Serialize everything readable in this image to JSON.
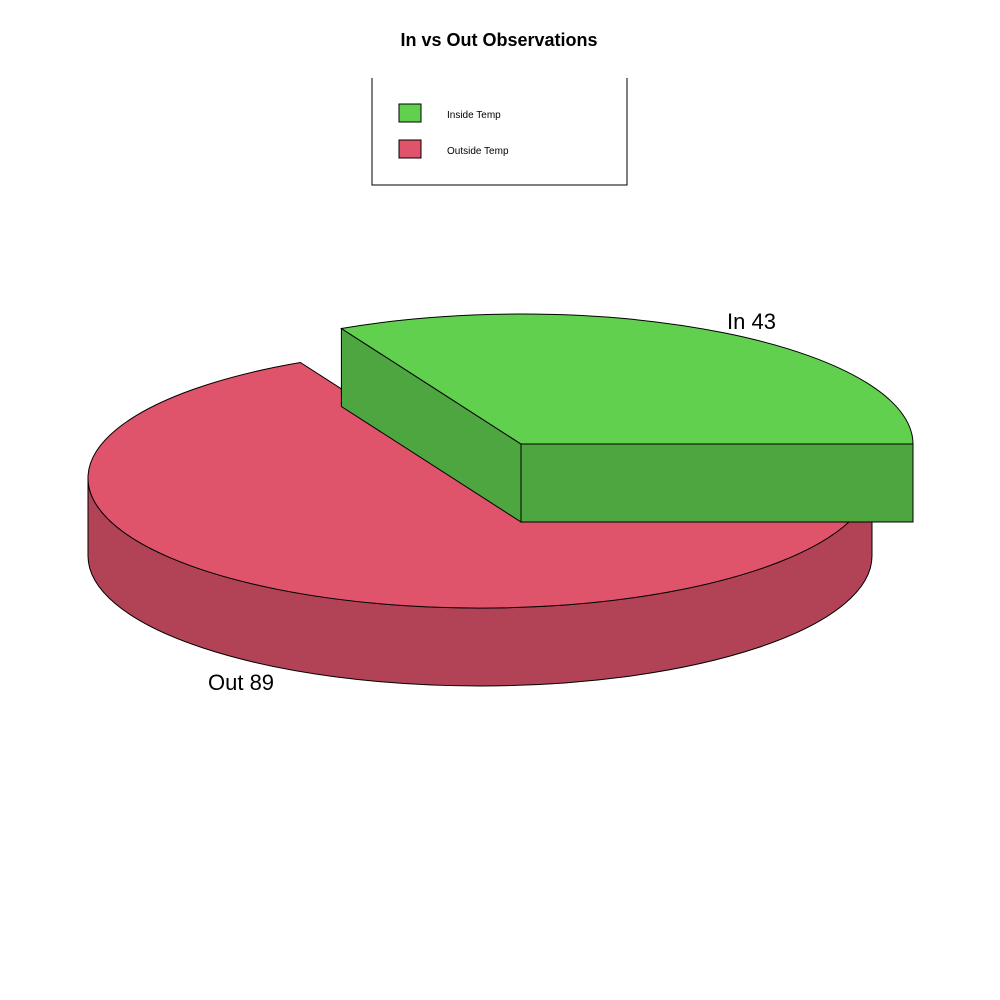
{
  "chart_data": {
    "type": "pie",
    "title": "In vs Out Observations",
    "legend_position": "top",
    "slices": [
      {
        "label": "In 43",
        "legend": "Inside Temp",
        "value": 43,
        "color": "#61D04F",
        "side_color": "#4DA63F",
        "exploded": true
      },
      {
        "label": "Out 89",
        "legend": "Outside Temp",
        "value": 89,
        "color": "#DF536B",
        "side_color": "#B24356",
        "exploded": false
      }
    ]
  }
}
